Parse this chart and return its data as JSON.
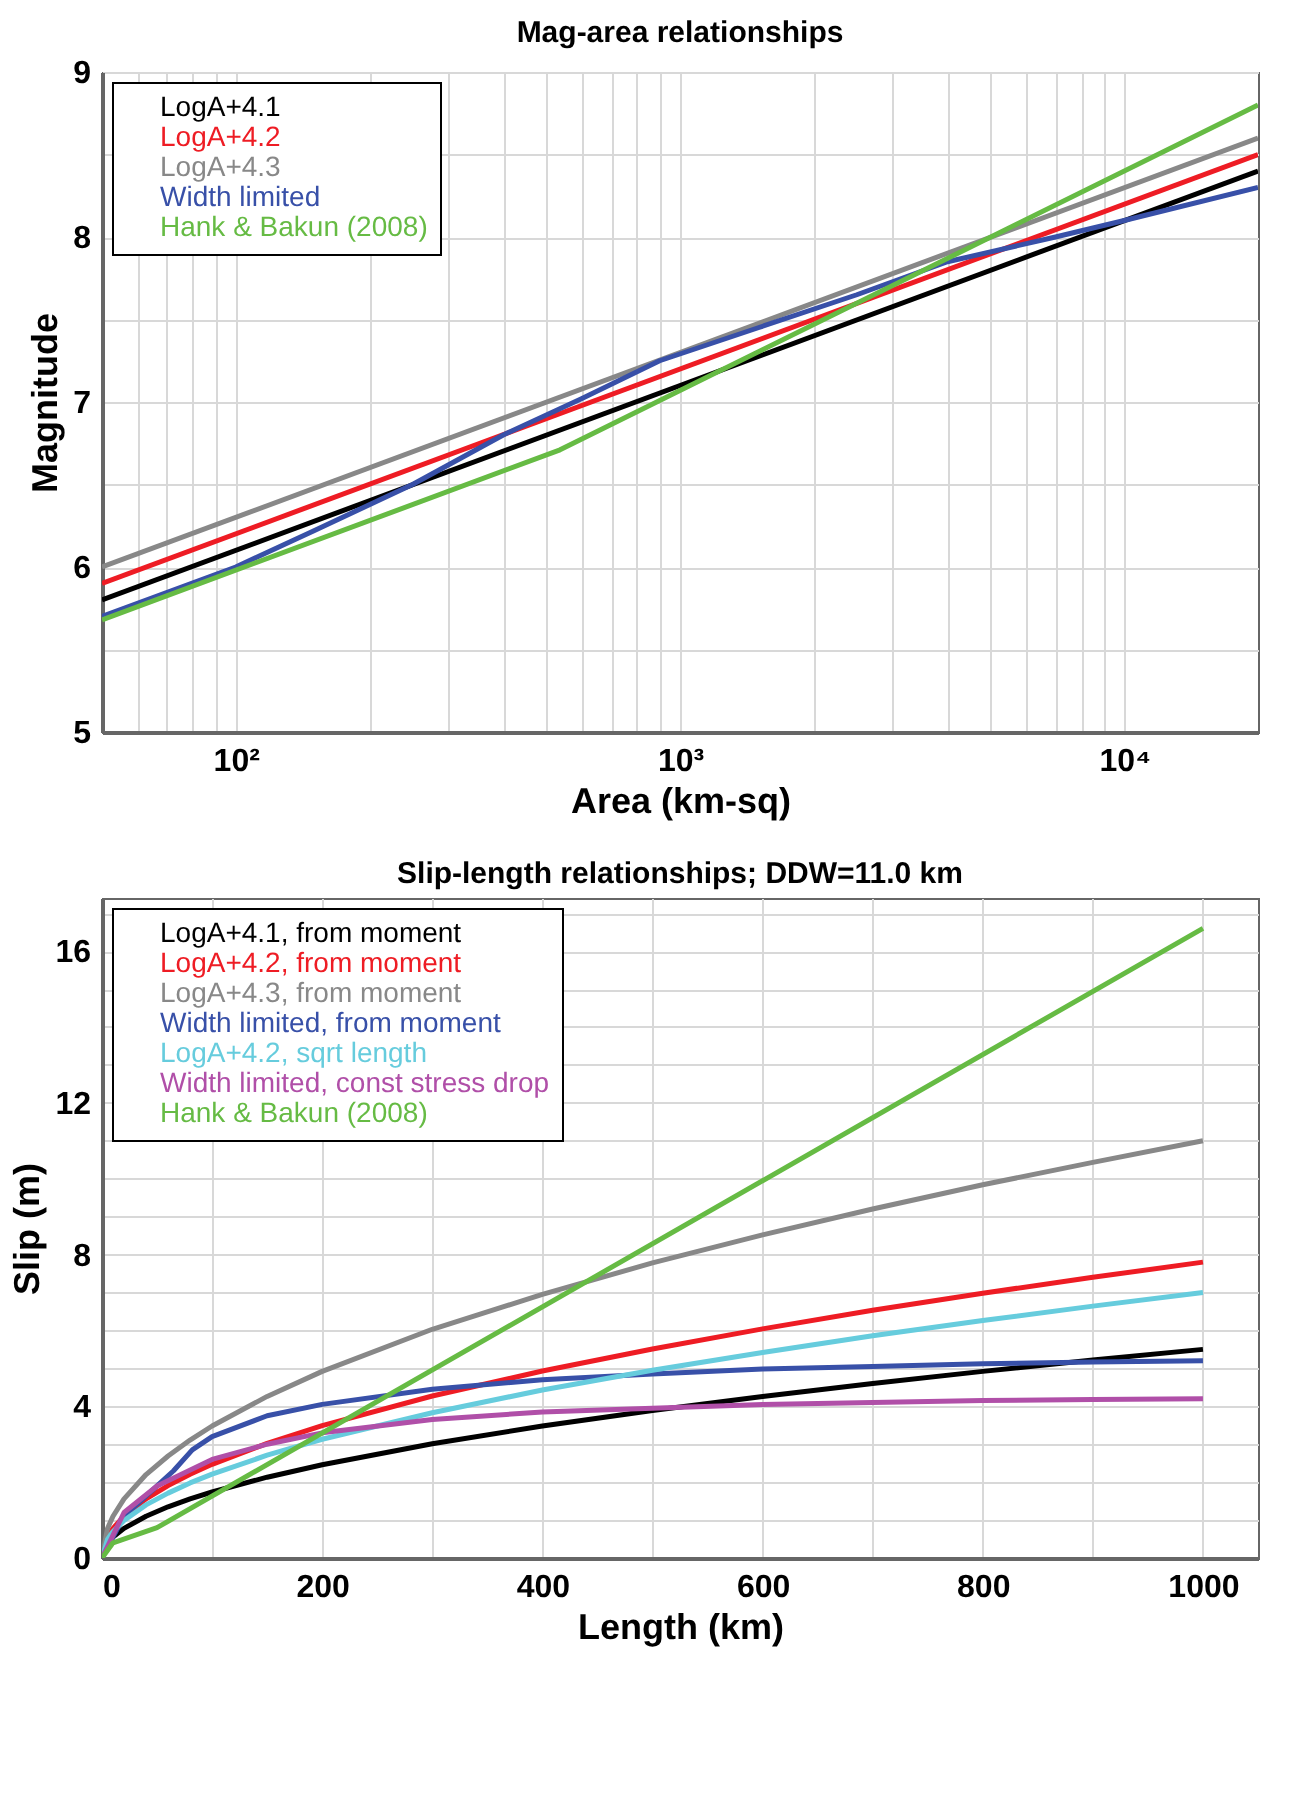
{
  "chart_data": [
    {
      "type": "line",
      "title": "Mag-area relationships",
      "xlabel": "Area (km-sq)",
      "ylabel": "Magnitude",
      "log": "x",
      "grid": true,
      "legend": "top left",
      "xlim": [
        50,
        20000
      ],
      "ylim": [
        5,
        9
      ],
      "xticks": [
        {
          "value": 60,
          "label": null
        },
        {
          "value": 70,
          "label": null
        },
        {
          "value": 80,
          "label": null
        },
        {
          "value": 90,
          "label": null
        },
        {
          "value": 100,
          "label": "10²"
        },
        {
          "value": 200,
          "label": null
        },
        {
          "value": 300,
          "label": null
        },
        {
          "value": 400,
          "label": null
        },
        {
          "value": 500,
          "label": null
        },
        {
          "value": 600,
          "label": null
        },
        {
          "value": 700,
          "label": null
        },
        {
          "value": 800,
          "label": null
        },
        {
          "value": 900,
          "label": null
        },
        {
          "value": 1000,
          "label": "10³"
        },
        {
          "value": 2000,
          "label": null
        },
        {
          "value": 3000,
          "label": null
        },
        {
          "value": 4000,
          "label": null
        },
        {
          "value": 5000,
          "label": null
        },
        {
          "value": 6000,
          "label": null
        },
        {
          "value": 7000,
          "label": null
        },
        {
          "value": 8000,
          "label": null
        },
        {
          "value": 9000,
          "label": null
        },
        {
          "value": 10000,
          "label": "10⁴"
        }
      ],
      "yticks": [
        5,
        {
          "value": 5.5,
          "label": null
        },
        6,
        {
          "value": 6.5,
          "label": null
        },
        7,
        {
          "value": 7.5,
          "label": null
        },
        8,
        {
          "value": 8.5,
          "label": null
        },
        9
      ],
      "series": [
        {
          "name": "LogA+4.1",
          "color": "#000000",
          "x": [
            50,
            20000
          ],
          "values": [
            5.8,
            8.4
          ]
        },
        {
          "name": "LogA+4.2",
          "color": "#ee1c24",
          "x": [
            50,
            20000
          ],
          "values": [
            5.9,
            8.5
          ]
        },
        {
          "name": "LogA+4.3",
          "color": "#888888",
          "x": [
            50,
            20000
          ],
          "values": [
            6.0,
            8.6
          ]
        },
        {
          "name": "Width limited",
          "color": "#3850a8",
          "x": [
            50,
            100,
            150,
            250,
            400,
            600,
            900,
            1500,
            2500,
            4000,
            7000,
            10000,
            20000
          ],
          "values": [
            5.7,
            6.0,
            6.22,
            6.5,
            6.8,
            7.02,
            7.25,
            7.45,
            7.65,
            7.85,
            8.0,
            8.1,
            8.3
          ]
        },
        {
          "name": "Hank & Bakun (2008)",
          "color": "#66bb44",
          "x": [
            50,
            537,
            20000
          ],
          "values": [
            5.68,
            6.71,
            8.8
          ]
        }
      ]
    },
    {
      "type": "line",
      "title": "Slip-length relationships; DDW=11.0 km",
      "xlabel": "Length (km)",
      "ylabel": "Slip (m)",
      "grid": true,
      "legend": "top left",
      "xlim": [
        0,
        1050
      ],
      "ylim": [
        0,
        17.4
      ],
      "xticks": [
        0,
        {
          "value": 100,
          "label": null
        },
        200,
        {
          "value": 300,
          "label": null
        },
        400,
        {
          "value": 500,
          "label": null
        },
        600,
        {
          "value": 700,
          "label": null
        },
        800,
        {
          "value": 900,
          "label": null
        },
        1000
      ],
      "yticks": [
        0,
        {
          "value": 1,
          "label": null
        },
        {
          "value": 2,
          "label": null
        },
        {
          "value": 3,
          "label": null
        },
        4,
        {
          "value": 5,
          "label": null
        },
        {
          "value": 6,
          "label": null
        },
        {
          "value": 7,
          "label": null
        },
        8,
        {
          "value": 9,
          "label": null
        },
        {
          "value": 10,
          "label": null
        },
        {
          "value": 11,
          "label": null
        },
        12,
        {
          "value": 13,
          "label": null
        },
        {
          "value": 14,
          "label": null
        },
        {
          "value": 15,
          "label": null
        },
        16,
        {
          "value": 17,
          "label": null
        }
      ],
      "series": [
        {
          "name": "LogA+4.1, from moment",
          "color": "#000000",
          "x": [
            0,
            5,
            10,
            20,
            40,
            60,
            80,
            100,
            150,
            200,
            300,
            400,
            500,
            600,
            700,
            800,
            900,
            1000
          ],
          "values": [
            0,
            0.39,
            0.55,
            0.78,
            1.1,
            1.35,
            1.56,
            1.74,
            2.13,
            2.46,
            3.01,
            3.48,
            3.89,
            4.26,
            4.6,
            4.92,
            5.22,
            5.5
          ]
        },
        {
          "name": "LogA+4.2, from moment",
          "color": "#ee1c24",
          "x": [
            0,
            5,
            10,
            20,
            40,
            60,
            80,
            100,
            150,
            200,
            300,
            400,
            500,
            600,
            700,
            800,
            900,
            1000
          ],
          "values": [
            0,
            0.55,
            0.78,
            1.1,
            1.56,
            1.91,
            2.21,
            2.47,
            3.02,
            3.49,
            4.27,
            4.93,
            5.51,
            6.04,
            6.53,
            6.98,
            7.4,
            7.8
          ]
        },
        {
          "name": "LogA+4.3, from moment",
          "color": "#888888",
          "x": [
            0,
            5,
            10,
            20,
            40,
            60,
            80,
            100,
            150,
            200,
            300,
            400,
            500,
            600,
            700,
            800,
            900,
            1000
          ],
          "values": [
            0,
            0.78,
            1.1,
            1.56,
            2.2,
            2.69,
            3.11,
            3.48,
            4.26,
            4.92,
            6.03,
            6.95,
            7.78,
            8.52,
            9.2,
            9.84,
            10.43,
            11.0
          ]
        },
        {
          "name": "Width limited, from moment",
          "color": "#3850a8",
          "x": [
            0,
            20,
            50,
            65,
            82,
            100,
            150,
            200,
            300,
            400,
            500,
            600,
            700,
            800,
            900,
            1000
          ],
          "values": [
            0,
            1.1,
            1.9,
            2.3,
            2.85,
            3.2,
            3.75,
            4.05,
            4.45,
            4.7,
            4.85,
            4.98,
            5.05,
            5.12,
            5.17,
            5.2
          ]
        },
        {
          "name": "LogA+4.2, sqrt length",
          "color": "#66ccdd",
          "x": [
            0,
            5,
            10,
            20,
            40,
            60,
            80,
            100,
            150,
            200,
            300,
            400,
            500,
            600,
            700,
            800,
            900,
            1000
          ],
          "values": [
            0,
            0.49,
            0.7,
            0.99,
            1.4,
            1.71,
            1.98,
            2.21,
            2.71,
            3.13,
            3.83,
            4.43,
            4.95,
            5.42,
            5.86,
            6.26,
            6.64,
            7.0
          ]
        },
        {
          "name": "Width limited, const stress drop",
          "color": "#b04fa8",
          "x": [
            0,
            20,
            50,
            100,
            150,
            200,
            300,
            400,
            500,
            600,
            700,
            800,
            900,
            1000
          ],
          "values": [
            0,
            1.2,
            1.9,
            2.6,
            3.0,
            3.3,
            3.65,
            3.85,
            3.95,
            4.05,
            4.1,
            4.15,
            4.18,
            4.2
          ]
        },
        {
          "name": "Hank & Bakun (2008)",
          "color": "#66bb44",
          "x": [
            0,
            10,
            50,
            1000
          ],
          "values": [
            0,
            0.4,
            0.8,
            16.6
          ]
        }
      ]
    }
  ]
}
